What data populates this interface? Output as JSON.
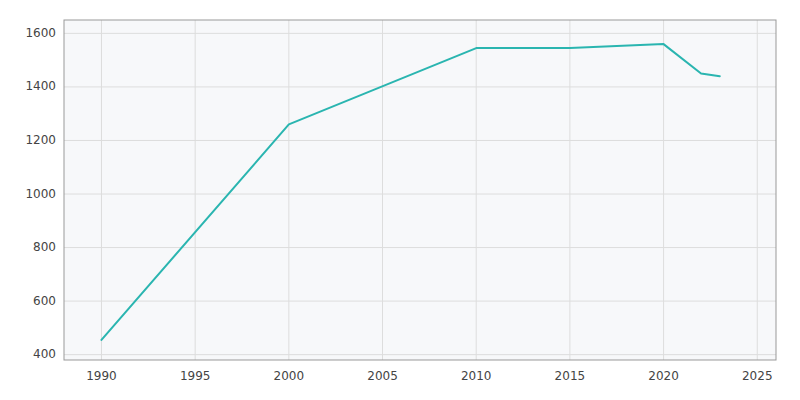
{
  "chart_data": {
    "type": "line",
    "x": [
      1990,
      2000,
      2010,
      2015,
      2020,
      2022,
      2023
    ],
    "values": [
      455,
      1260,
      1545,
      1545,
      1560,
      1450,
      1440
    ],
    "color": "#2ab5b0",
    "xlim": [
      1988,
      2026
    ],
    "ylim": [
      380,
      1650
    ],
    "xticks": [
      1990,
      1995,
      2000,
      2005,
      2010,
      2015,
      2020,
      2025
    ],
    "yticks": [
      400,
      600,
      800,
      1000,
      1200,
      1400,
      1600
    ],
    "grid": true
  }
}
